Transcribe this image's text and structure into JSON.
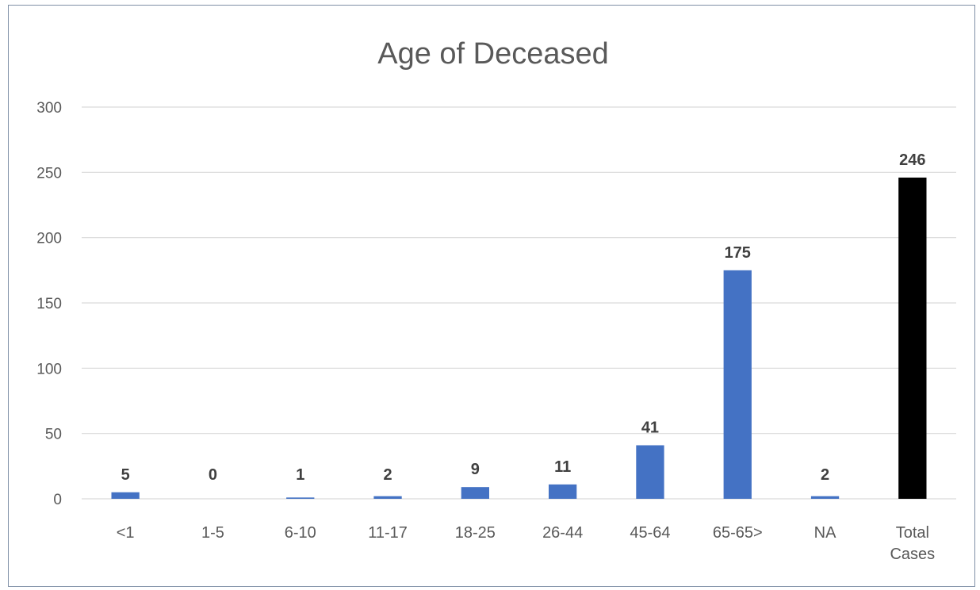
{
  "chart_data": {
    "type": "bar",
    "title": "Age of Deceased",
    "xlabel": "",
    "ylabel": "",
    "categories": [
      "<1",
      "1-5",
      "6-10",
      "11-17",
      "18-25",
      "26-44",
      "45-64",
      "65-65>",
      "NA",
      "Total Cases"
    ],
    "values": [
      5,
      0,
      1,
      2,
      9,
      11,
      41,
      175,
      2,
      246
    ],
    "ylim": [
      0,
      300
    ],
    "yticks": [
      0,
      50,
      100,
      150,
      200,
      250,
      300
    ],
    "grid": true,
    "legend": "none",
    "colors": {
      "bar": "#4472c4",
      "total_bar": "#000000"
    }
  }
}
